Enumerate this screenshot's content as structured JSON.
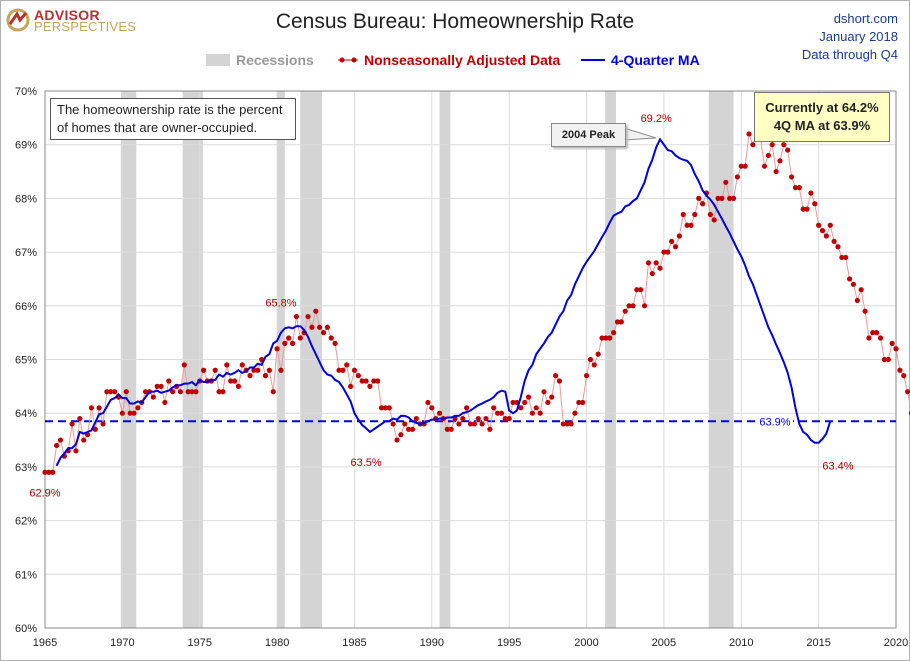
{
  "header": {
    "logo_top": "ADVISOR",
    "logo_bottom": "PERSPECTIVES",
    "title": "Census Bureau: Homeownership Rate",
    "source_line1": "dshort.com",
    "source_line2": "January 2018",
    "source_line3": "Data through Q4"
  },
  "note": "The homeownership rate is the percent of homes that are owner-occupied.",
  "current_box": {
    "line1": "Currently at 64.2%",
    "line2": "4Q MA at 63.9%"
  },
  "colors": {
    "raw": "#c00000",
    "ma": "#0000dd",
    "recession": "#d4d4d4",
    "reference": "#0000dd",
    "label_red": "#a40000"
  },
  "chart_data": {
    "type": "line",
    "title": "Census Bureau: Homeownership Rate",
    "xlim": [
      1965,
      2020
    ],
    "ylim": [
      60,
      70
    ],
    "x_ticks": [
      1965,
      1970,
      1975,
      1980,
      1985,
      1990,
      1995,
      2000,
      2005,
      2010,
      2015,
      2020
    ],
    "y_ticks": [
      60,
      61,
      62,
      63,
      64,
      65,
      66,
      67,
      68,
      69,
      70
    ],
    "y_tick_labels": [
      "60%",
      "61%",
      "62%",
      "63%",
      "64%",
      "65%",
      "66%",
      "67%",
      "68%",
      "69%",
      "70%"
    ],
    "grid": true,
    "legend": [
      {
        "name": "Recessions",
        "kind": "band"
      },
      {
        "name": "Nonseasonally Adjusted Data",
        "kind": "marker-line"
      },
      {
        "name": "4-Quarter MA",
        "kind": "line"
      }
    ],
    "legend_position": "top-center",
    "recessions": [
      [
        1969.9,
        1970.9
      ],
      [
        1973.9,
        1975.2
      ],
      [
        1980.0,
        1980.5
      ],
      [
        1981.5,
        1982.9
      ],
      [
        1990.5,
        1991.2
      ],
      [
        2001.2,
        2001.9
      ],
      [
        2007.9,
        2009.5
      ]
    ],
    "reference_line": {
      "y": 63.85,
      "label": "63.9%"
    },
    "series_x_start": 1965.0,
    "series_x_step": 0.25,
    "series": [
      {
        "name": "Nonseasonally Adjusted Data",
        "values": [
          62.9,
          62.9,
          62.9,
          63.4,
          63.5,
          63.2,
          63.3,
          63.8,
          63.3,
          63.9,
          63.5,
          63.6,
          64.1,
          63.7,
          64.1,
          63.8,
          64.4,
          64.4,
          64.4,
          64.3,
          64.0,
          64.4,
          64.0,
          64.0,
          64.1,
          64.2,
          64.4,
          64.4,
          64.3,
          64.5,
          64.5,
          64.2,
          64.6,
          64.4,
          64.5,
          64.4,
          64.9,
          64.4,
          64.4,
          64.4,
          64.6,
          64.8,
          64.6,
          64.6,
          64.8,
          64.4,
          64.4,
          64.9,
          64.6,
          64.6,
          64.5,
          64.9,
          64.8,
          64.7,
          64.8,
          64.8,
          65.0,
          64.7,
          64.8,
          64.4,
          65.2,
          64.8,
          65.3,
          65.4,
          65.3,
          65.8,
          65.4,
          65.5,
          65.8,
          65.6,
          65.9,
          65.6,
          65.5,
          65.6,
          65.4,
          65.3,
          64.8,
          64.8,
          64.9,
          64.5,
          64.8,
          64.7,
          64.6,
          64.6,
          64.5,
          64.6,
          64.6,
          64.1,
          64.1,
          64.1,
          63.8,
          63.5,
          63.6,
          63.8,
          63.7,
          63.7,
          63.9,
          63.8,
          63.8,
          64.2,
          64.1,
          63.9,
          64.0,
          63.9,
          63.7,
          63.7,
          63.9,
          63.8,
          63.9,
          64.1,
          63.8,
          63.8,
          63.9,
          63.8,
          63.9,
          63.7,
          64.1,
          64.0,
          64.0,
          63.9,
          63.9,
          64.2,
          64.2,
          64.1,
          64.2,
          64.3,
          64.0,
          64.1,
          64.0,
          64.4,
          64.2,
          64.3,
          64.7,
          64.6,
          63.8,
          63.8,
          63.8,
          64.0,
          64.2,
          64.2,
          64.7,
          65.0,
          64.9,
          65.1,
          65.4,
          65.4,
          65.4,
          65.5,
          65.7,
          65.7,
          65.9,
          66.0,
          66.0,
          66.3,
          66.3,
          66.0,
          66.8,
          66.6,
          66.8,
          66.7,
          67.0,
          67.0,
          67.2,
          67.1,
          67.3,
          67.7,
          67.5,
          67.5,
          67.7,
          68.0,
          67.9,
          68.1,
          67.7,
          67.6,
          68.0,
          68.0,
          68.3,
          68.0,
          68.0,
          68.4,
          68.6,
          68.6,
          69.2,
          69.0,
          69.2,
          69.1,
          68.6,
          68.8,
          69.0,
          68.5,
          68.7,
          69.0,
          68.9,
          68.4,
          68.2,
          68.2,
          67.8,
          67.8,
          68.1,
          67.9,
          67.5,
          67.4,
          67.3,
          67.5,
          67.2,
          67.1,
          66.9,
          66.9,
          66.5,
          66.4,
          66.1,
          66.3,
          65.9,
          65.4,
          65.5,
          65.5,
          65.4,
          65.0,
          65.0,
          65.3,
          65.2,
          64.8,
          64.7,
          64.4,
          64.0,
          63.7,
          63.4,
          63.7,
          63.8,
          63.5,
          63.6,
          62.9,
          63.7,
          63.6,
          63.7,
          63.9,
          64.2
        ]
      },
      {
        "name": "4-Quarter MA",
        "values": [
          63.02,
          63.17,
          63.25,
          63.35,
          63.35,
          63.42,
          63.65,
          63.62,
          63.65,
          63.68,
          63.83,
          63.98,
          64.0,
          64.12,
          64.25,
          64.28,
          64.35,
          64.28,
          64.28,
          64.18,
          64.18,
          64.22,
          64.2,
          64.3,
          64.4,
          64.4,
          64.42,
          64.38,
          64.4,
          64.42,
          64.48,
          64.52,
          64.52,
          64.55,
          64.55,
          64.58,
          64.52,
          64.62,
          64.58,
          64.58,
          64.62,
          64.62,
          64.72,
          64.68,
          64.75,
          64.72,
          64.75,
          64.8,
          64.75,
          64.78,
          64.85,
          64.85,
          64.92,
          64.9,
          65.05,
          65.1,
          65.3,
          65.35,
          65.5,
          65.58,
          65.6,
          65.58,
          65.62,
          65.62,
          65.55,
          65.42,
          65.25,
          65.1,
          64.95,
          64.8,
          64.72,
          64.7,
          64.62,
          64.58,
          64.48,
          64.35,
          64.22,
          64.0,
          63.88,
          63.78,
          63.72,
          63.65,
          63.7,
          63.75,
          63.8,
          63.85,
          63.85,
          63.9,
          63.88,
          63.95,
          63.95,
          63.92,
          63.85,
          63.82,
          63.8,
          63.82,
          63.85,
          63.88,
          63.88,
          63.9,
          63.9,
          63.92,
          63.92,
          63.95,
          63.95,
          64.0,
          64.02,
          64.05,
          64.1,
          64.15,
          64.18,
          64.22,
          64.25,
          64.3,
          64.38,
          64.42,
          64.4,
          64.05,
          64.0,
          64.05,
          64.3,
          64.6,
          64.8,
          64.9,
          65.1,
          65.2,
          65.3,
          65.42,
          65.5,
          65.65,
          65.8,
          65.9,
          66.1,
          66.2,
          66.4,
          66.55,
          66.7,
          66.82,
          66.92,
          67.02,
          67.15,
          67.28,
          67.4,
          67.55,
          67.68,
          67.72,
          67.75,
          67.85,
          67.88,
          67.95,
          68.0,
          68.15,
          68.3,
          68.55,
          68.72,
          68.95,
          69.1,
          69.0,
          68.9,
          68.88,
          68.8,
          68.75,
          68.72,
          68.7,
          68.62,
          68.45,
          68.32,
          68.15,
          68.05,
          67.98,
          67.88,
          67.75,
          67.62,
          67.48,
          67.35,
          67.2,
          67.05,
          66.92,
          66.75,
          66.55,
          66.4,
          66.2,
          66.0,
          65.8,
          65.6,
          65.45,
          65.28,
          65.12,
          64.95,
          64.75,
          64.48,
          64.1,
          63.8,
          63.65,
          63.6,
          63.5,
          63.45,
          63.45,
          63.52,
          63.62,
          63.85
        ]
      }
    ],
    "annotations": [
      {
        "text": "62.9%",
        "x": 1965.0,
        "y": 62.9
      },
      {
        "text": "65.8%",
        "x": 1980.25,
        "y": 65.8
      },
      {
        "text": "63.5%",
        "x": 1985.75,
        "y": 63.5
      },
      {
        "text": "69.2%",
        "x": 2004.5,
        "y": 69.2
      },
      {
        "text": "2004 Peak",
        "x": 2004.5,
        "y": 69.2
      },
      {
        "text": "63.4%",
        "x": 2016.25,
        "y": 63.4
      }
    ]
  }
}
